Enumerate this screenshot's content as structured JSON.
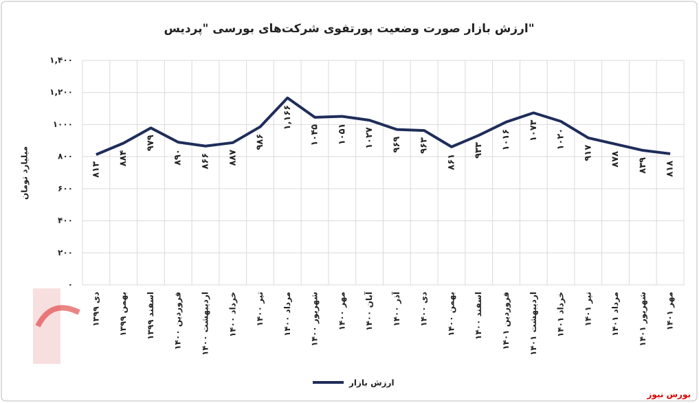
{
  "chart_data": {
    "type": "line",
    "title": "ارزش بازار صورت وضعیت پورتفوی شرکت‌های بورسی \"پردیس\"",
    "y_label": "میلیارد تومان",
    "source": "بورس نیوز",
    "categories": [
      "دی ۱۳۹۹",
      "بهمن ۱۳۹۹",
      "اسفند ۱۳۹۹",
      "فروردین ۱۴۰۰",
      "اردیبهشت ۱۴۰۰",
      "خرداد ۱۴۰۰",
      "تیر ۱۴۰۰",
      "مرداد ۱۴۰۰",
      "شهریور ۱۴۰۰",
      "مهر ۱۴۰۰",
      "آبان ۱۴۰۰",
      "آذر ۱۴۰۰",
      "دی ۱۴۰۰",
      "بهمن ۱۴۰۰",
      "اسفند ۱۴۰۰",
      "فروردین ۱۴۰۱",
      "اردیبهشت ۱۴۰۱",
      "خرداد ۱۴۰۱",
      "تیر ۱۴۰۱",
      "مرداد ۱۴۰۱",
      "شهریور ۱۴۰۱",
      "مهر ۱۴۰۱"
    ],
    "series": [
      {
        "name": "ارزش بازار",
        "color": "#1f2d5a",
        "values": [
          813,
          884,
          979,
          890,
          866,
          887,
          986,
          1166,
          1045,
          1051,
          1027,
          969,
          963,
          861,
          933,
          1016,
          1073,
          1020,
          917,
          878,
          839,
          818
        ],
        "value_labels": [
          "۸۱۳",
          "۸۸۴",
          "۹۷۹",
          "۸۹۰",
          "۸۶۶",
          "۸۸۷",
          "۹۸۶",
          "۱,۱۶۶",
          "۱۰۴۵",
          "۱۰۵۱",
          "۱۰۲۷",
          "۹۶۹",
          "۹۶۳",
          "۸۶۱",
          "۹۳۳",
          "۱۰۱۶",
          "۱۰۷۳",
          "۱۰۲۰",
          "۹۱۷",
          "۸۷۸",
          "۸۳۹",
          "۸۱۸"
        ]
      }
    ],
    "ylim": [
      0,
      1400
    ],
    "yticks": [
      {
        "value": 0,
        "label": "۰"
      },
      {
        "value": 200,
        "label": "۲۰۰"
      },
      {
        "value": 400,
        "label": "۴۰۰"
      },
      {
        "value": 600,
        "label": "۶۰۰"
      },
      {
        "value": 800,
        "label": "۸۰۰"
      },
      {
        "value": 1000,
        "label": "۱۰۰۰"
      },
      {
        "value": 1200,
        "label": "۱,۲۰۰"
      },
      {
        "value": 1400,
        "label": "۱,۴۰۰"
      }
    ],
    "grid": true
  }
}
